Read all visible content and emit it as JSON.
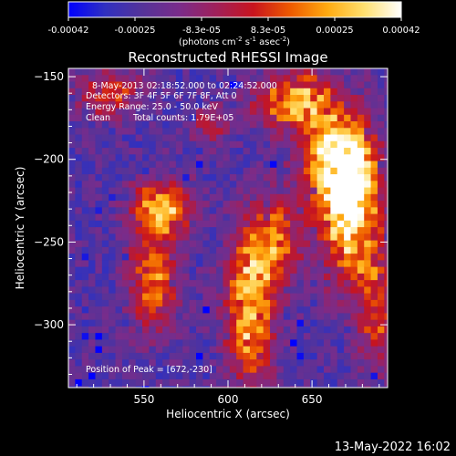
{
  "chart_data": {
    "type": "heatmap",
    "title": "Reconstructed RHESSI Image",
    "xlabel": "Heliocentric X (arcsec)",
    "ylabel": "Heliocentric Y (arcsec)",
    "xlim": [
      505,
      695
    ],
    "ylim": [
      -338,
      -145
    ],
    "xticks": [
      550,
      600,
      650
    ],
    "yticks": [
      -150,
      -200,
      -250,
      -300
    ],
    "colorbar": {
      "ticks": [
        "-0.00042",
        "-0.00025",
        "-8.3e-05",
        "8.3e-05",
        "0.00025",
        "0.00042"
      ],
      "range": [
        -0.00042,
        0.00042
      ],
      "units_main": "(photons cm",
      "units_exp1": "-2",
      "units_mid": " s",
      "units_exp2": "-1",
      "units_mid2": " asec",
      "units_exp3": "-2",
      "units_end": ")",
      "stops": [
        "#0000ff",
        "#3030c0",
        "#553399",
        "#7a2c8a",
        "#a0205a",
        "#c8141e",
        "#ee5a00",
        "#ffaa10",
        "#ffe070",
        "#ffffff"
      ]
    },
    "annotations": {
      "time_range": "8-May-2013 02:18:52.000 to 02:24:52.000",
      "detectors": "Detectors: 3F 4F 5F 6F 7F 8F, Att 0",
      "energy": "Energy Range: 25.0 - 50.0 keV",
      "method": "Clean",
      "total_counts": "Total counts: 1.79E+05",
      "peak": "Position of Peak = [672,-230]"
    },
    "sources": [
      {
        "x": 672,
        "y": -230,
        "sx": 12,
        "sy": 28,
        "amp": 1.0
      },
      {
        "x": 665,
        "y": -200,
        "sx": 14,
        "sy": 20,
        "amp": 0.85
      },
      {
        "x": 640,
        "y": -165,
        "sx": 16,
        "sy": 12,
        "amp": 0.8
      },
      {
        "x": 613,
        "y": -290,
        "sx": 10,
        "sy": 32,
        "amp": 0.78
      },
      {
        "x": 628,
        "y": -250,
        "sx": 10,
        "sy": 18,
        "amp": 0.6
      },
      {
        "x": 560,
        "y": -230,
        "sx": 12,
        "sy": 12,
        "amp": 0.8
      },
      {
        "x": 555,
        "y": -275,
        "sx": 10,
        "sy": 20,
        "amp": 0.62
      },
      {
        "x": 530,
        "y": -160,
        "sx": 14,
        "sy": 10,
        "amp": 0.45
      },
      {
        "x": 688,
        "y": -290,
        "sx": 8,
        "sy": 25,
        "amp": 0.5
      },
      {
        "x": 590,
        "y": -180,
        "sx": 8,
        "sy": 8,
        "amp": 0.4
      }
    ]
  },
  "footer": {
    "date": "13-May-2022 16:02"
  }
}
